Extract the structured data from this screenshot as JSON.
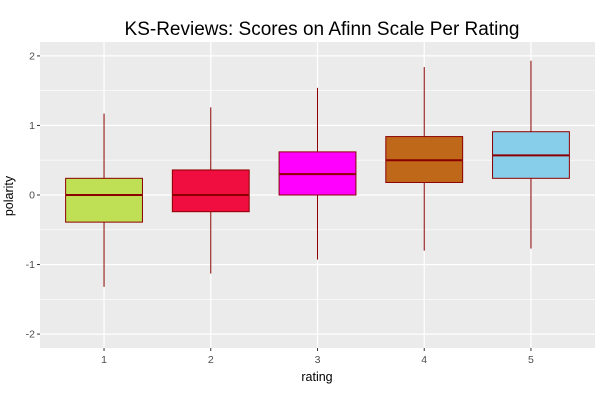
{
  "chart_data": {
    "type": "boxplot",
    "title": "KS-Reviews: Scores on Afinn Scale Per Rating",
    "xlabel": "rating",
    "ylabel": "polarity",
    "categories": [
      "1",
      "2",
      "3",
      "4",
      "5"
    ],
    "ylim": [
      -2.2,
      2.2
    ],
    "yticks": [
      -2,
      -1,
      0,
      1,
      2
    ],
    "ytick_labels": [
      "-2",
      "-1",
      "0",
      "1",
      "2"
    ],
    "grid": true,
    "background": "#EBEBEB",
    "median_color": "#8B0000",
    "outline_color": "#8B0000",
    "boxes": [
      {
        "category": "1",
        "whisker_low": -1.32,
        "q1": -0.39,
        "median": 0.0,
        "q3": 0.24,
        "whisker_high": 1.17,
        "fill": "#BFDF55"
      },
      {
        "category": "2",
        "whisker_low": -1.13,
        "q1": -0.24,
        "median": 0.0,
        "q3": 0.36,
        "whisker_high": 1.26,
        "fill": "#F00D3F"
      },
      {
        "category": "3",
        "whisker_low": -0.93,
        "q1": 0.0,
        "median": 0.3,
        "q3": 0.62,
        "whisker_high": 1.54,
        "fill": "#FF00FF"
      },
      {
        "category": "4",
        "whisker_low": -0.8,
        "q1": 0.18,
        "median": 0.5,
        "q3": 0.84,
        "whisker_high": 1.84,
        "fill": "#C0681A"
      },
      {
        "category": "5",
        "whisker_low": -0.77,
        "q1": 0.24,
        "median": 0.57,
        "q3": 0.91,
        "whisker_high": 1.93,
        "fill": "#87CEEB"
      }
    ]
  }
}
